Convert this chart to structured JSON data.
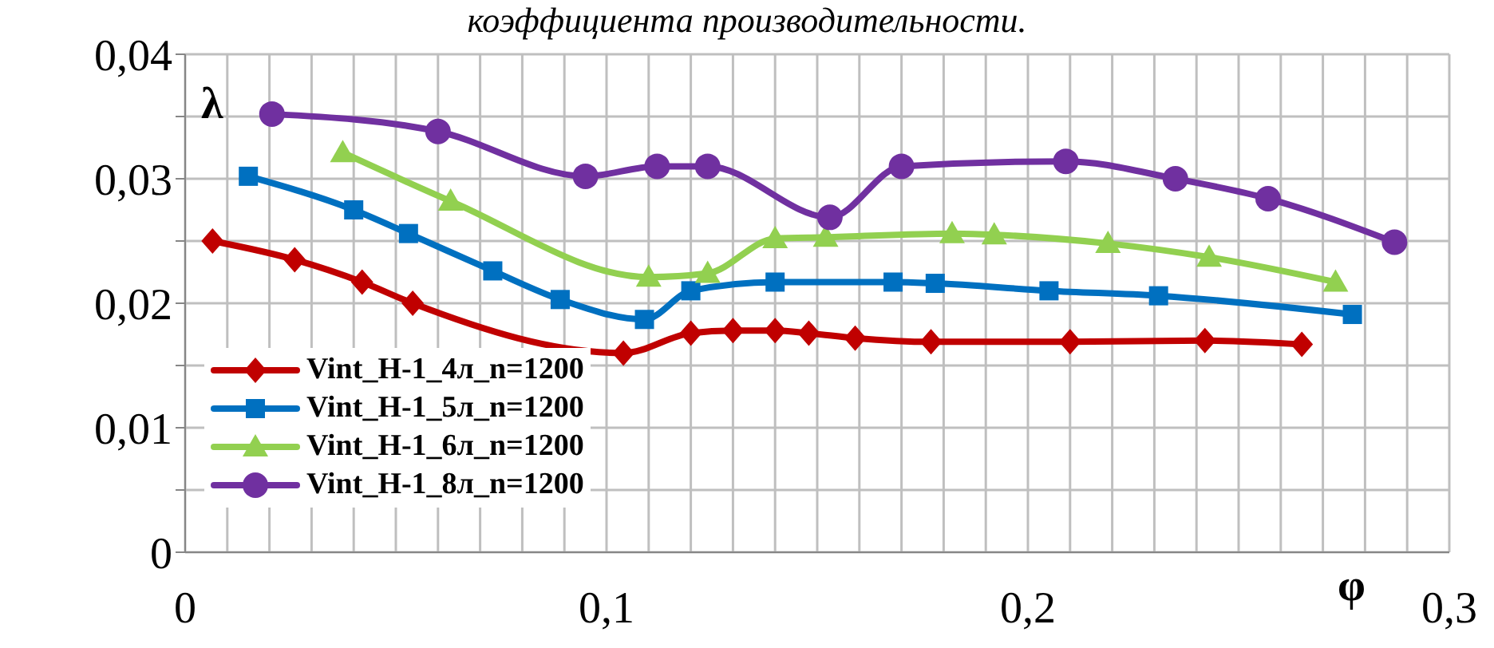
{
  "chart_data": {
    "type": "line",
    "title": "коэффициента производительности.",
    "xlabel": "φ",
    "ylabel": "λ",
    "xlim": [
      0,
      0.3
    ],
    "xticks": [
      {
        "value": 0,
        "label": "0"
      },
      {
        "value": 0.01,
        "label": null
      },
      {
        "value": 0.02,
        "label": null
      },
      {
        "value": 0.03,
        "label": null
      },
      {
        "value": 0.04,
        "label": null
      },
      {
        "value": 0.05,
        "label": null
      },
      {
        "value": 0.06,
        "label": null
      },
      {
        "value": 0.07,
        "label": null
      },
      {
        "value": 0.08,
        "label": null
      },
      {
        "value": 0.09,
        "label": null
      },
      {
        "value": 0.1,
        "label": "0,1"
      },
      {
        "value": 0.11,
        "label": null
      },
      {
        "value": 0.12,
        "label": null
      },
      {
        "value": 0.13,
        "label": null
      },
      {
        "value": 0.14,
        "label": null
      },
      {
        "value": 0.15,
        "label": null
      },
      {
        "value": 0.16,
        "label": null
      },
      {
        "value": 0.17,
        "label": null
      },
      {
        "value": 0.18,
        "label": null
      },
      {
        "value": 0.19,
        "label": null
      },
      {
        "value": 0.2,
        "label": "0,2"
      },
      {
        "value": 0.21,
        "label": null
      },
      {
        "value": 0.22,
        "label": null
      },
      {
        "value": 0.23,
        "label": null
      },
      {
        "value": 0.24,
        "label": null
      },
      {
        "value": 0.25,
        "label": null
      },
      {
        "value": 0.26,
        "label": null
      },
      {
        "value": 0.27,
        "label": null
      },
      {
        "value": 0.28,
        "label": null
      },
      {
        "value": 0.29,
        "label": null
      },
      {
        "value": 0.3,
        "label": "0,3"
      }
    ],
    "ylim": [
      0,
      0.04
    ],
    "yticks": [
      {
        "value": 0,
        "label": "0"
      },
      {
        "value": 0.005,
        "label": null
      },
      {
        "value": 0.01,
        "label": "0,01"
      },
      {
        "value": 0.015,
        "label": null
      },
      {
        "value": 0.02,
        "label": "0,02"
      },
      {
        "value": 0.025,
        "label": null
      },
      {
        "value": 0.03,
        "label": "0,03"
      },
      {
        "value": 0.035,
        "label": null
      },
      {
        "value": 0.04,
        "label": "0,04"
      }
    ],
    "grid": true,
    "legend": "bottom left",
    "line_style": "solid",
    "series": [
      {
        "name": "Vint_H-1_4л_n=1200",
        "color": "#c00000",
        "marker": "diamond",
        "x": [
          0.0065,
          0.026,
          0.042,
          0.054,
          0.104,
          0.12,
          0.13,
          0.14,
          0.148,
          0.159,
          0.177,
          0.21,
          0.242,
          0.265
        ],
        "values": [
          0.025,
          0.0235,
          0.0217,
          0.02,
          0.016,
          0.0176,
          0.0178,
          0.0178,
          0.0176,
          0.0172,
          0.0169,
          0.0169,
          0.017,
          0.0167
        ]
      },
      {
        "name": "Vint_H-1_5л_n=1200",
        "color": "#0070c0",
        "marker": "square",
        "x": [
          0.015,
          0.04,
          0.053,
          0.073,
          0.089,
          0.109,
          0.12,
          0.14,
          0.168,
          0.178,
          0.205,
          0.231,
          0.277
        ],
        "values": [
          0.0302,
          0.0275,
          0.0256,
          0.0226,
          0.0203,
          0.0187,
          0.021,
          0.0217,
          0.0217,
          0.0216,
          0.021,
          0.0206,
          0.0191
        ]
      },
      {
        "name": "Vint_H-1_6л_n=1200",
        "color": "#92d050",
        "marker": "triangle",
        "x": [
          0.0374,
          0.063,
          0.11,
          0.124,
          0.14,
          0.152,
          0.182,
          0.192,
          0.219,
          0.243,
          0.273
        ],
        "values": [
          0.0321,
          0.0282,
          0.0221,
          0.0224,
          0.0252,
          0.0253,
          0.0256,
          0.0255,
          0.0248,
          0.0237,
          0.0217
        ]
      },
      {
        "name": "Vint_H-1_8л_n=1200",
        "color": "#7030a0",
        "marker": "circle",
        "x": [
          0.0206,
          0.06,
          0.095,
          0.112,
          0.124,
          0.153,
          0.17,
          0.209,
          0.235,
          0.257,
          0.287
        ],
        "values": [
          0.0352,
          0.0338,
          0.0302,
          0.031,
          0.031,
          0.0269,
          0.031,
          0.0314,
          0.03,
          0.0284,
          0.0249
        ]
      }
    ]
  }
}
